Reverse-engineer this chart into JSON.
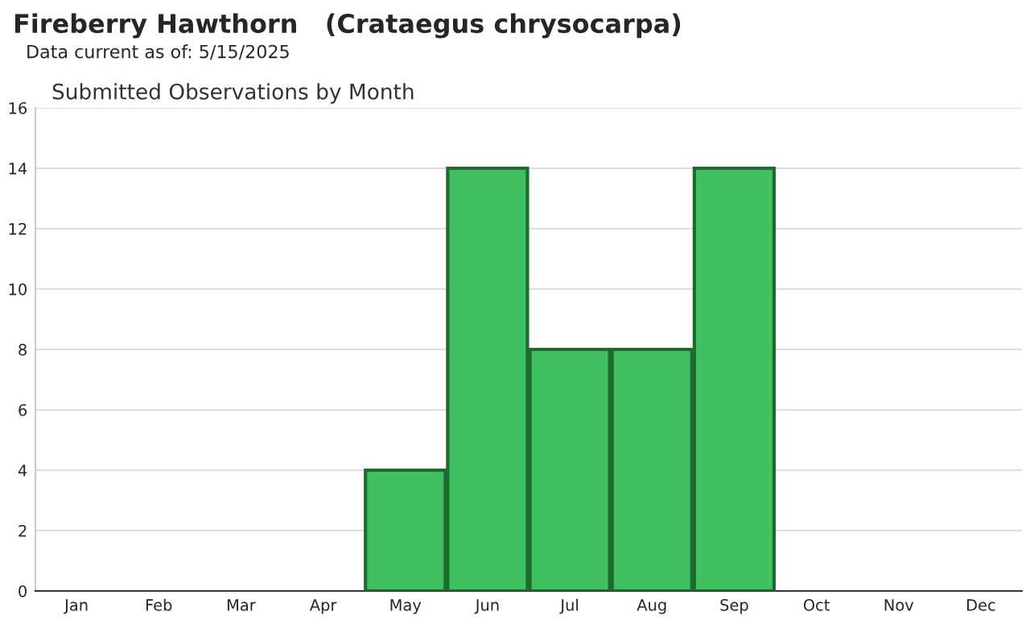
{
  "chart_data": {
    "type": "bar",
    "title": "Fireberry Hawthorn   (Crataegus chrysocarpa)",
    "subtitle": "Data current as of: 5/15/2025",
    "annotations": [
      "Submitted Observations by Month"
    ],
    "categories": [
      "Jan",
      "Feb",
      "Mar",
      "Apr",
      "May",
      "Jun",
      "Jul",
      "Aug",
      "Sep",
      "Oct",
      "Nov",
      "Dec"
    ],
    "values": [
      0,
      0,
      0,
      0,
      4,
      14,
      8,
      8,
      14,
      0,
      0,
      0
    ],
    "color": "#3fbf5f",
    "ylim": [
      0,
      16
    ],
    "yticks": [
      0,
      2,
      4,
      6,
      8,
      10,
      12,
      14,
      16
    ],
    "grid": "y"
  }
}
